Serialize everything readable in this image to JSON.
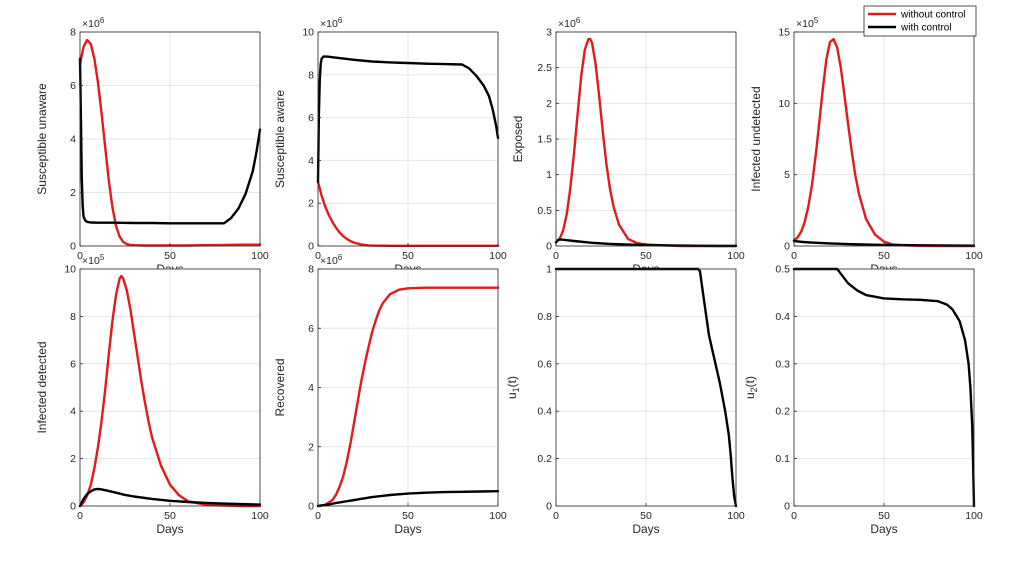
{
  "colors": {
    "without_control": "#e31a1c",
    "with_control": "#000000",
    "grid": "#e6e6e6",
    "axis": "#262626"
  },
  "legend": {
    "placement": "top-right",
    "entries": [
      "without control",
      "with control"
    ]
  },
  "chart_data": [
    {
      "type": "line",
      "xlabel": "Days",
      "ylabel": "Susceptible unaware",
      "xlim": [
        0,
        100
      ],
      "ylim": [
        0,
        8
      ],
      "xticks": [
        "0",
        "50",
        "100"
      ],
      "yticks": [
        "0",
        "2",
        "4",
        "6",
        "8"
      ],
      "multiplier_exp": "6",
      "grid": true,
      "series": [
        {
          "name": "without control",
          "x": [
            0,
            2,
            4,
            6,
            8,
            10,
            12,
            14,
            16,
            18,
            20,
            22,
            24,
            26,
            28,
            30,
            35,
            40,
            50,
            60,
            70,
            80,
            90,
            100
          ],
          "y": [
            6.8,
            7.45,
            7.7,
            7.55,
            7.0,
            6.1,
            4.95,
            3.7,
            2.45,
            1.45,
            0.75,
            0.35,
            0.15,
            0.07,
            0.04,
            0.03,
            0.02,
            0.02,
            0.02,
            0.02,
            0.03,
            0.04,
            0.05,
            0.05
          ]
        },
        {
          "name": "with control",
          "x": [
            0,
            0.5,
            1,
            1.5,
            2,
            3,
            4,
            6,
            10,
            20,
            30,
            40,
            50,
            60,
            70,
            80,
            84,
            88,
            92,
            96,
            98,
            100
          ],
          "y": [
            7.0,
            4.8,
            2.5,
            1.5,
            1.08,
            0.95,
            0.9,
            0.88,
            0.87,
            0.87,
            0.86,
            0.86,
            0.85,
            0.85,
            0.85,
            0.85,
            1.05,
            1.4,
            1.95,
            2.8,
            3.5,
            4.35
          ]
        }
      ]
    },
    {
      "type": "line",
      "xlabel": "Days",
      "ylabel": "Susceptible aware",
      "xlim": [
        0,
        100
      ],
      "ylim": [
        0,
        10
      ],
      "xticks": [
        "0",
        "50",
        "100"
      ],
      "yticks": [
        "0",
        "2",
        "4",
        "6",
        "8",
        "10"
      ],
      "multiplier_exp": "6",
      "grid": true,
      "series": [
        {
          "name": "without control",
          "x": [
            0,
            2,
            4,
            6,
            8,
            10,
            12,
            14,
            16,
            18,
            20,
            22,
            24,
            26,
            28,
            30,
            40,
            50,
            60,
            70,
            80,
            90,
            100
          ],
          "y": [
            3.0,
            2.35,
            1.85,
            1.45,
            1.12,
            0.85,
            0.63,
            0.46,
            0.33,
            0.23,
            0.16,
            0.11,
            0.07,
            0.05,
            0.03,
            0.02,
            0.01,
            0.01,
            0.01,
            0.01,
            0.01,
            0.01,
            0.01
          ]
        },
        {
          "name": "with control",
          "x": [
            0,
            0.5,
            1,
            1.5,
            2,
            3,
            5,
            10,
            20,
            30,
            40,
            50,
            60,
            70,
            80,
            84,
            88,
            92,
            95,
            97,
            99,
            100
          ],
          "y": [
            3.0,
            6.2,
            7.8,
            8.5,
            8.75,
            8.85,
            8.85,
            8.8,
            8.7,
            8.62,
            8.58,
            8.55,
            8.52,
            8.5,
            8.48,
            8.3,
            7.95,
            7.5,
            7.0,
            6.4,
            5.6,
            5.05
          ]
        }
      ]
    },
    {
      "type": "line",
      "xlabel": "Days",
      "ylabel": "Exposed",
      "xlim": [
        0,
        100
      ],
      "ylim": [
        0,
        3
      ],
      "xticks": [
        "0",
        "50",
        "100"
      ],
      "yticks": [
        "0",
        "0.5",
        "1",
        "1.5",
        "2",
        "2.5",
        "3"
      ],
      "multiplier_exp": "6",
      "grid": true,
      "series": [
        {
          "name": "without control",
          "x": [
            0,
            2,
            4,
            6,
            8,
            10,
            12,
            14,
            16,
            18,
            19,
            20,
            22,
            24,
            26,
            28,
            30,
            32,
            35,
            40,
            45,
            50,
            60,
            70,
            80,
            90,
            100
          ],
          "y": [
            0.05,
            0.1,
            0.22,
            0.45,
            0.82,
            1.3,
            1.85,
            2.38,
            2.75,
            2.9,
            2.9,
            2.85,
            2.55,
            2.1,
            1.6,
            1.15,
            0.8,
            0.55,
            0.3,
            0.1,
            0.04,
            0.02,
            0.01,
            0.0,
            0.0,
            0.0,
            0.0
          ]
        },
        {
          "name": "with control",
          "x": [
            0,
            1,
            2,
            3,
            5,
            10,
            20,
            30,
            40,
            50,
            60,
            70,
            80,
            90,
            100
          ],
          "y": [
            0.05,
            0.08,
            0.09,
            0.09,
            0.085,
            0.07,
            0.045,
            0.03,
            0.02,
            0.012,
            0.008,
            0.005,
            0.003,
            0.002,
            0.001
          ]
        }
      ]
    },
    {
      "type": "line",
      "xlabel": "Days",
      "ylabel": "Infected undetected",
      "xlim": [
        0,
        100
      ],
      "ylim": [
        0,
        15
      ],
      "xticks": [
        "0",
        "50",
        "100"
      ],
      "yticks": [
        "0",
        "5",
        "10",
        "15"
      ],
      "multiplier_exp": "5",
      "grid": true,
      "series": [
        {
          "name": "without control",
          "x": [
            0,
            2,
            4,
            6,
            8,
            10,
            12,
            14,
            16,
            18,
            20,
            22,
            24,
            26,
            28,
            30,
            32,
            34,
            36,
            40,
            45,
            50,
            55,
            60,
            70,
            80,
            90,
            100
          ],
          "y": [
            0.4,
            0.6,
            1.0,
            1.7,
            2.8,
            4.3,
            6.3,
            8.6,
            11.0,
            13.1,
            14.3,
            14.5,
            13.9,
            12.5,
            10.6,
            8.6,
            6.7,
            5.0,
            3.7,
            1.9,
            0.8,
            0.3,
            0.1,
            0.05,
            0.01,
            0.0,
            0.0,
            0.0
          ]
        },
        {
          "name": "with control",
          "x": [
            0,
            2,
            5,
            10,
            20,
            30,
            40,
            50,
            60,
            70,
            80,
            90,
            100
          ],
          "y": [
            0.35,
            0.32,
            0.28,
            0.24,
            0.18,
            0.13,
            0.1,
            0.08,
            0.06,
            0.05,
            0.04,
            0.03,
            0.02
          ]
        }
      ]
    },
    {
      "type": "line",
      "xlabel": "Days",
      "ylabel": "Infected detected",
      "xlim": [
        0,
        100
      ],
      "ylim": [
        0,
        10
      ],
      "xticks": [
        "0",
        "50",
        "100"
      ],
      "yticks": [
        "0",
        "2",
        "4",
        "6",
        "8",
        "10"
      ],
      "multiplier_exp": "5",
      "grid": true,
      "series": [
        {
          "name": "without control",
          "x": [
            0,
            2,
            4,
            6,
            8,
            10,
            12,
            14,
            16,
            18,
            20,
            22,
            23,
            24,
            26,
            28,
            30,
            32,
            34,
            36,
            38,
            40,
            45,
            50,
            55,
            60,
            70,
            80,
            90,
            100
          ],
          "y": [
            0.0,
            0.15,
            0.45,
            0.9,
            1.6,
            2.5,
            3.6,
            4.9,
            6.4,
            7.8,
            8.9,
            9.6,
            9.7,
            9.6,
            9.1,
            8.3,
            7.3,
            6.3,
            5.3,
            4.4,
            3.6,
            2.9,
            1.7,
            0.9,
            0.45,
            0.2,
            0.05,
            0.02,
            0.0,
            0.0
          ]
        },
        {
          "name": "with control",
          "x": [
            0,
            2,
            4,
            6,
            8,
            10,
            12,
            15,
            20,
            25,
            30,
            40,
            50,
            60,
            70,
            80,
            90,
            100
          ],
          "y": [
            0.0,
            0.3,
            0.5,
            0.62,
            0.7,
            0.72,
            0.7,
            0.65,
            0.56,
            0.47,
            0.4,
            0.3,
            0.22,
            0.17,
            0.13,
            0.1,
            0.08,
            0.06
          ]
        }
      ]
    },
    {
      "type": "line",
      "xlabel": "Days",
      "ylabel": "Recovered",
      "xlim": [
        0,
        100
      ],
      "ylim": [
        0,
        8
      ],
      "xticks": [
        "0",
        "50",
        "100"
      ],
      "yticks": [
        "0",
        "2",
        "4",
        "6",
        "8"
      ],
      "multiplier_exp": "6",
      "grid": true,
      "series": [
        {
          "name": "without control",
          "x": [
            0,
            4,
            8,
            10,
            12,
            14,
            16,
            18,
            20,
            22,
            24,
            26,
            28,
            30,
            32,
            34,
            36,
            38,
            40,
            45,
            50,
            60,
            70,
            80,
            90,
            100
          ],
          "y": [
            0.0,
            0.04,
            0.2,
            0.38,
            0.65,
            1.0,
            1.5,
            2.1,
            2.8,
            3.5,
            4.2,
            4.8,
            5.35,
            5.85,
            6.25,
            6.6,
            6.85,
            7.0,
            7.15,
            7.3,
            7.35,
            7.37,
            7.37,
            7.37,
            7.37,
            7.37
          ]
        },
        {
          "name": "with control",
          "x": [
            0,
            5,
            10,
            20,
            30,
            40,
            50,
            60,
            70,
            80,
            90,
            100
          ],
          "y": [
            0.0,
            0.04,
            0.1,
            0.2,
            0.3,
            0.37,
            0.42,
            0.45,
            0.47,
            0.48,
            0.49,
            0.5
          ]
        }
      ]
    },
    {
      "type": "line",
      "xlabel": "Days",
      "ylabel": "u_1(t)",
      "ylabel_main": "u",
      "ylabel_sub": "1",
      "ylabel_tail": "(t)",
      "xlim": [
        0,
        100
      ],
      "ylim": [
        0,
        1
      ],
      "xticks": [
        "0",
        "50",
        "100"
      ],
      "yticks": [
        "0",
        "0.2",
        "0.4",
        "0.6",
        "0.8",
        "1"
      ],
      "grid": true,
      "series": [
        {
          "name": "with control",
          "x": [
            0,
            20,
            40,
            60,
            70,
            79,
            80,
            82,
            85,
            88,
            91,
            94,
            96,
            97,
            98,
            99,
            100
          ],
          "y": [
            1,
            1,
            1,
            1,
            1,
            1,
            0.99,
            0.88,
            0.72,
            0.62,
            0.52,
            0.4,
            0.3,
            0.22,
            0.12,
            0.04,
            0.0
          ]
        }
      ]
    },
    {
      "type": "line",
      "xlabel": "Days",
      "ylabel": "u_2(t)",
      "ylabel_main": "u",
      "ylabel_sub": "2",
      "ylabel_tail": "(t)",
      "xlim": [
        0,
        100
      ],
      "ylim": [
        0,
        0.5
      ],
      "xticks": [
        "0",
        "50",
        "100"
      ],
      "yticks": [
        "0",
        "0.1",
        "0.2",
        "0.3",
        "0.4",
        "0.5"
      ],
      "grid": true,
      "series": [
        {
          "name": "with control",
          "x": [
            0,
            10,
            20,
            24,
            26,
            30,
            35,
            40,
            50,
            60,
            70,
            80,
            85,
            88,
            92,
            95,
            97,
            98,
            99,
            99.5,
            100
          ],
          "y": [
            0.5,
            0.5,
            0.5,
            0.5,
            0.49,
            0.47,
            0.455,
            0.445,
            0.438,
            0.436,
            0.435,
            0.432,
            0.425,
            0.415,
            0.39,
            0.35,
            0.3,
            0.25,
            0.17,
            0.09,
            0.0
          ]
        }
      ]
    }
  ]
}
